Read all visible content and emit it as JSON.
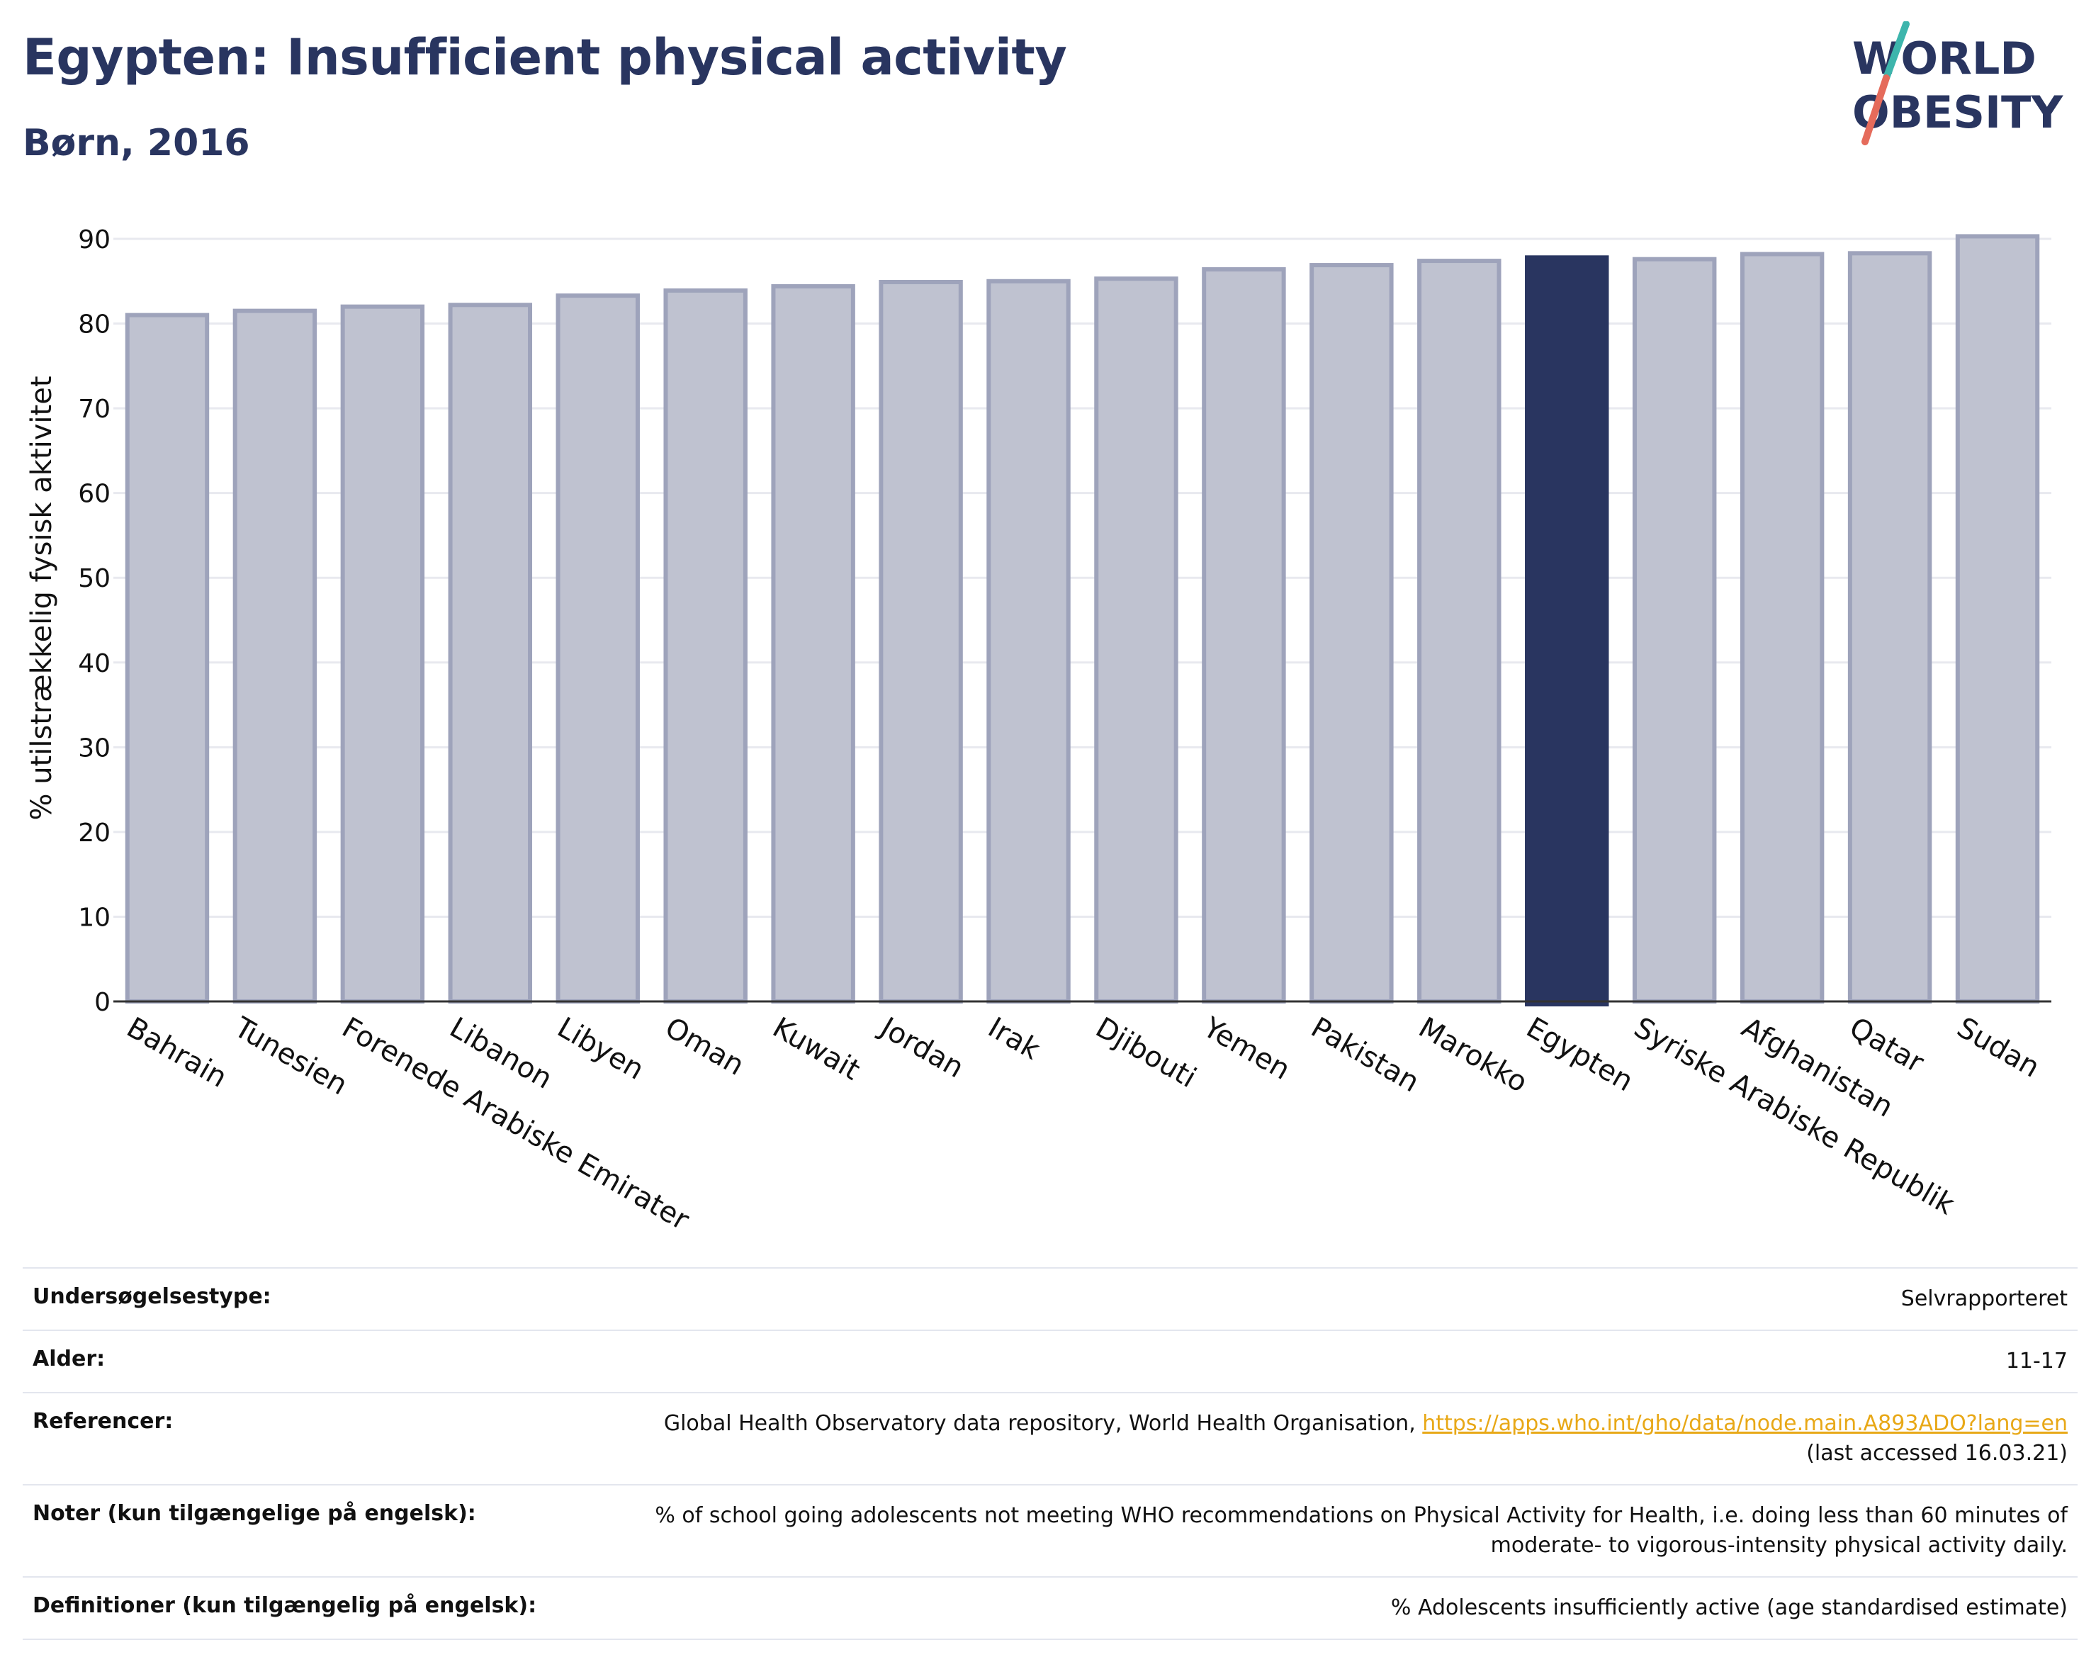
{
  "header": {
    "title": "Egypten: Insufficient physical activity",
    "subtitle": "Børn, 2016"
  },
  "logo": {
    "line1": "WORLD",
    "line2": "OBESITY"
  },
  "colors": {
    "text": "#293560",
    "bar_default": "#bfc2d0",
    "bar_border": "#9ea3bb",
    "bar_highlight": "#293560",
    "grid": "#e8e9ef",
    "link": "#e8a817",
    "logo_slash_top": "#3db5ac",
    "logo_slash_bottom": "#e56b5b"
  },
  "chart_data": {
    "type": "bar",
    "title": "Egypten: Insufficient physical activity",
    "subtitle": "Børn, 2016",
    "ylabel": "% utilstrækkelig fysisk aktivitet",
    "xlabel": "",
    "ylim": [
      0,
      90
    ],
    "yticks": [
      0,
      10,
      20,
      30,
      40,
      50,
      60,
      70,
      80,
      90
    ],
    "grid": true,
    "categories": [
      "Bahrain",
      "Tunesien",
      "Forenede Arabiske Emirater",
      "Libanon",
      "Libyen",
      "Oman",
      "Kuwait",
      "Jordan",
      "Irak",
      "Djibouti",
      "Yemen",
      "Pakistan",
      "Marokko",
      "Egypten",
      "Syriske Arabiske Republik",
      "Afghanistan",
      "Qatar",
      "Sudan"
    ],
    "values": [
      81.0,
      81.5,
      82.0,
      82.2,
      83.3,
      83.9,
      84.4,
      84.9,
      85.0,
      85.3,
      86.4,
      86.9,
      87.4,
      87.8,
      87.6,
      88.2,
      88.3,
      90.3
    ],
    "highlight": "Egypten"
  },
  "info": {
    "rows": [
      {
        "label": "Undersøgelsestype:",
        "value": "Selvrapporteret"
      },
      {
        "label": "Alder:",
        "value": "11-17"
      },
      {
        "label": "Referencer:",
        "value": "Global Health Observatory data repository, World Health Organisation, ",
        "link": "https://apps.who.int/gho/data/node.main.A893ADO?lang=en",
        "value2": "(last accessed 16.03.21)"
      },
      {
        "label": "Noter (kun tilgængelige på engelsk):",
        "value": "% of school going adolescents not meeting WHO recommendations on Physical Activity for Health, i.e. doing less than 60 minutes of",
        "value2": "moderate- to vigorous-intensity physical activity daily."
      },
      {
        "label": "Definitioner (kun tilgængelig på engelsk):",
        "value": "% Adolescents insufficiently active (age standardised estimate)"
      }
    ]
  }
}
